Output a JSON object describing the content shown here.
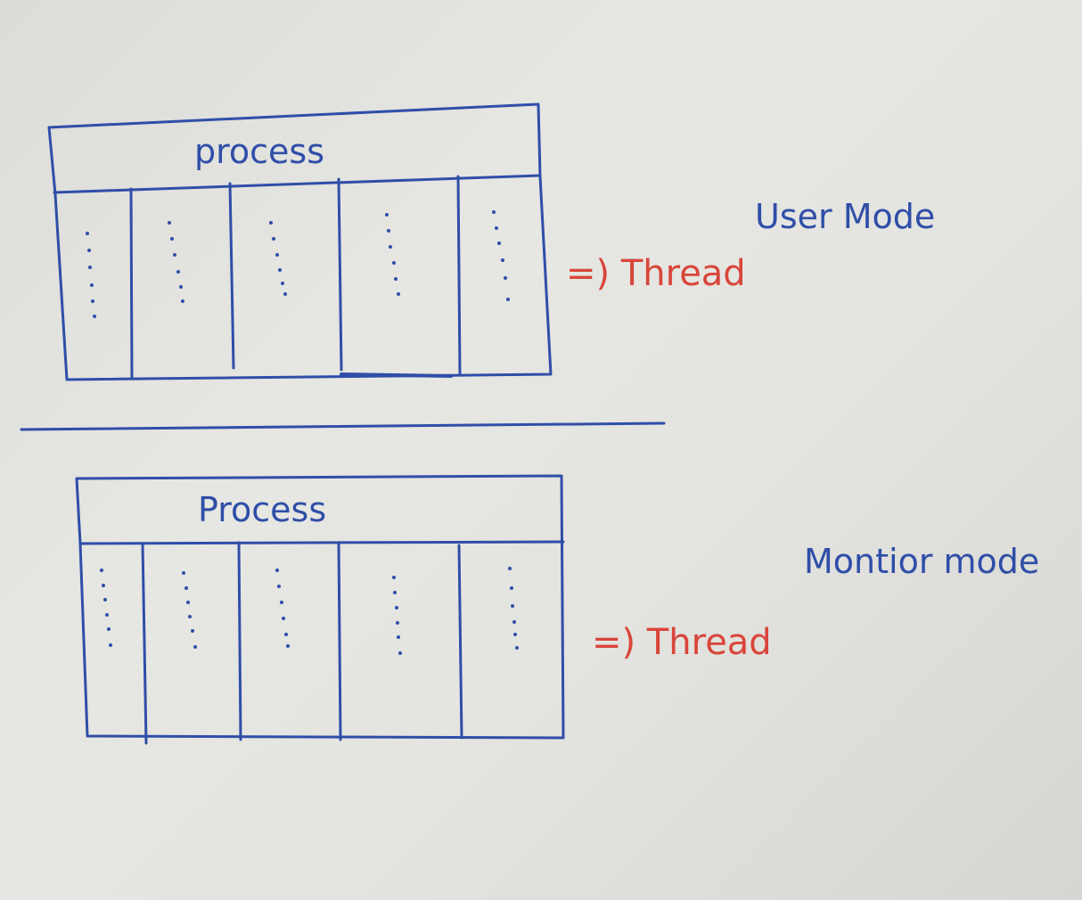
{
  "top_diagram": {
    "process_label": "process",
    "thread_label": "=) Thread",
    "mode_label": "User Mode",
    "columns": 5
  },
  "bottom_diagram": {
    "process_label": "Process",
    "thread_label": "=) Thread",
    "mode_label": "Montior mode",
    "columns": 5
  },
  "colors": {
    "ink_blue": "#2f4ea8",
    "ink_red": "#d9453a",
    "paper": "#e2e2de"
  }
}
